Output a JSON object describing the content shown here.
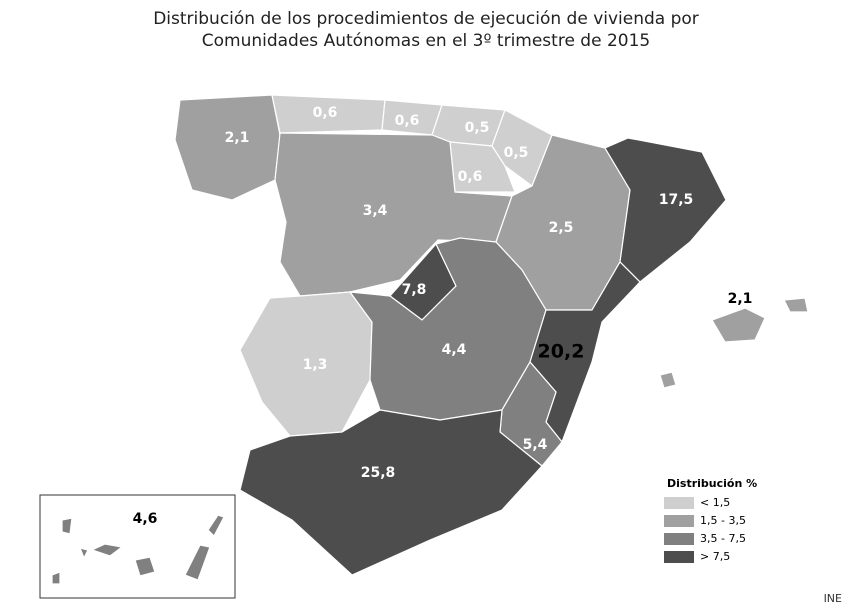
{
  "title": [
    "Distribución de los procedimientos de ejecución de vivienda por",
    "Comunidades Autónomas en el 3º trimestre de 2015"
  ],
  "regions": [
    {
      "value": 2.1,
      "label": "2,1",
      "color": "#a0a0a0"
    },
    {
      "value": 0.6,
      "label": "0,6",
      "color": "#cfcfcf"
    },
    {
      "value": 0.6,
      "label": "0,6",
      "color": "#cfcfcf"
    },
    {
      "value": 0.5,
      "label": "0,5",
      "color": "#cfcfcf"
    },
    {
      "value": 0.5,
      "label": "0,5",
      "color": "#cfcfcf"
    },
    {
      "value": 0.6,
      "label": "0,6",
      "color": "#cfcfcf"
    },
    {
      "value": 3.4,
      "label": "3,4",
      "color": "#a0a0a0"
    },
    {
      "value": 2.5,
      "label": "2,5",
      "color": "#a0a0a0"
    },
    {
      "value": 17.5,
      "label": "17,5",
      "color": "#4d4d4d"
    },
    {
      "value": 7.8,
      "label": "7,8",
      "color": "#4d4d4d"
    },
    {
      "value": 1.3,
      "label": "1,3",
      "color": "#cfcfcf"
    },
    {
      "value": 4.4,
      "label": "4,4",
      "color": "#808080"
    },
    {
      "value": 20.2,
      "label": "20,2",
      "color": "#4d4d4d"
    },
    {
      "value": 5.4,
      "label": "5,4",
      "color": "#808080"
    },
    {
      "value": 25.8,
      "label": "25,8",
      "color": "#4d4d4d"
    },
    {
      "value": 2.1,
      "label": "2,1",
      "color": "#a0a0a0"
    },
    {
      "value": 4.6,
      "label": "4,6",
      "color": "#808080"
    }
  ],
  "legend": {
    "title": "Distribución %",
    "items": [
      {
        "label": "< 1,5",
        "color": "#cfcfcf"
      },
      {
        "label": "1,5 - 3,5",
        "color": "#a0a0a0"
      },
      {
        "label": "3,5 - 7,5",
        "color": "#808080"
      },
      {
        "label": "> 7,5",
        "color": "#4d4d4d"
      }
    ]
  },
  "source": "INE"
}
